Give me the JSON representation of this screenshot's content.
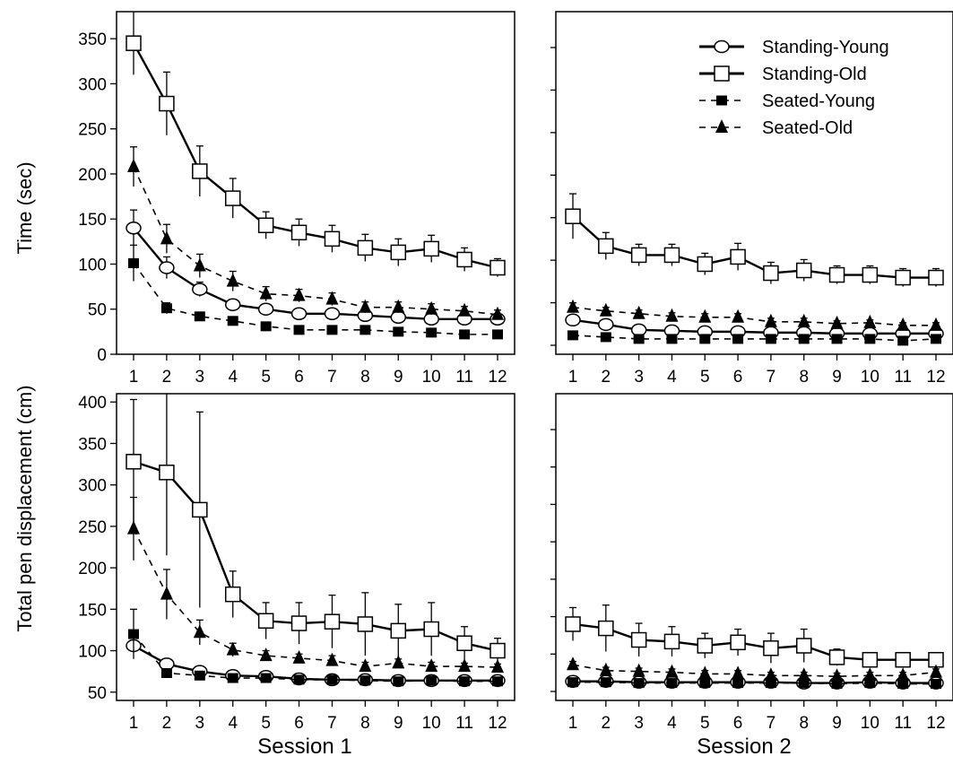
{
  "figure": {
    "session_labels": [
      "Session 1",
      "Session 2"
    ],
    "ylabels": [
      "Time (sec)",
      "Total pen displacement (cm)"
    ]
  },
  "legend": [
    {
      "name": "Standing-Young",
      "marker": "circle",
      "line": "solid",
      "weight": "bold"
    },
    {
      "name": "Standing-Old",
      "marker": "square",
      "line": "solid",
      "weight": "bold"
    },
    {
      "name": "Seated-Young",
      "marker": "filled-square",
      "line": "dashed",
      "weight": "normal"
    },
    {
      "name": "Seated-Old",
      "marker": "filled-triangle",
      "line": "dashed",
      "weight": "normal"
    }
  ],
  "chart_data": [
    {
      "type": "line",
      "panel": "time-session-1",
      "title": "",
      "xlabel": "Session 1",
      "ylabel": "Time (sec)",
      "x": [
        1,
        2,
        3,
        4,
        5,
        6,
        7,
        8,
        9,
        10,
        11,
        12
      ],
      "xticks": [
        1,
        2,
        3,
        4,
        5,
        6,
        7,
        8,
        9,
        10,
        11,
        12
      ],
      "ylim": [
        0,
        380
      ],
      "yticks": [
        0,
        50,
        100,
        150,
        200,
        250,
        300,
        350
      ],
      "grid": false,
      "legend": false,
      "series": [
        {
          "name": "Standing-Young",
          "values": [
            140,
            96,
            72,
            55,
            50,
            45,
            45,
            43,
            41,
            39,
            39,
            39
          ],
          "err": [
            20,
            12,
            8,
            6,
            5,
            4,
            4,
            4,
            4,
            3,
            3,
            3
          ]
        },
        {
          "name": "Standing-Old",
          "values": [
            345,
            278,
            203,
            173,
            143,
            135,
            128,
            118,
            113,
            117,
            105,
            96
          ],
          "err": [
            35,
            35,
            28,
            22,
            15,
            15,
            15,
            15,
            15,
            15,
            13,
            10
          ]
        },
        {
          "name": "Seated-Young",
          "values": [
            101,
            51,
            42,
            37,
            31,
            27,
            27,
            27,
            25,
            24,
            22,
            22
          ],
          "err": [
            20,
            6,
            4,
            3,
            3,
            2,
            2,
            2,
            2,
            2,
            2,
            2
          ]
        },
        {
          "name": "Seated-Old",
          "values": [
            208,
            128,
            98,
            81,
            67,
            65,
            61,
            52,
            52,
            50,
            48,
            44
          ],
          "err": [
            22,
            16,
            13,
            11,
            8,
            7,
            7,
            6,
            6,
            6,
            5,
            5
          ]
        }
      ]
    },
    {
      "type": "line",
      "panel": "time-session-2",
      "title": "",
      "xlabel": "Session 2",
      "ylabel": "",
      "x": [
        1,
        2,
        3,
        4,
        5,
        6,
        7,
        8,
        9,
        10,
        11,
        12
      ],
      "xticks": [
        1,
        2,
        3,
        4,
        5,
        6,
        7,
        8,
        9,
        10,
        11,
        12
      ],
      "ylim": [
        0,
        380
      ],
      "yticks": [],
      "grid": false,
      "legend": true,
      "legend_position": "top-right",
      "series": [
        {
          "name": "Standing-Young",
          "values": [
            38,
            33,
            27,
            26,
            25,
            25,
            24,
            24,
            23,
            23,
            23,
            23
          ],
          "err": [
            4,
            3,
            3,
            3,
            3,
            3,
            3,
            3,
            3,
            3,
            3,
            3
          ]
        },
        {
          "name": "Standing-Old",
          "values": [
            153,
            120,
            110,
            110,
            100,
            108,
            90,
            93,
            88,
            88,
            85,
            85
          ],
          "err": [
            25,
            15,
            12,
            12,
            12,
            15,
            12,
            12,
            10,
            10,
            10,
            10
          ]
        },
        {
          "name": "Seated-Young",
          "values": [
            21,
            19,
            17,
            17,
            17,
            17,
            17,
            17,
            17,
            17,
            15,
            17
          ],
          "err": [
            2,
            2,
            2,
            2,
            2,
            2,
            2,
            2,
            2,
            2,
            2,
            2
          ]
        },
        {
          "name": "Seated-Old",
          "values": [
            52,
            48,
            45,
            42,
            41,
            41,
            36,
            36,
            34,
            35,
            32,
            32
          ],
          "err": [
            5,
            4,
            4,
            4,
            4,
            4,
            4,
            4,
            3,
            3,
            3,
            3
          ]
        }
      ]
    },
    {
      "type": "line",
      "panel": "displacement-session-1",
      "title": "",
      "xlabel": "Session 1",
      "ylabel": "Total pen displacement (cm)",
      "x": [
        1,
        2,
        3,
        4,
        5,
        6,
        7,
        8,
        9,
        10,
        11,
        12
      ],
      "xticks": [
        1,
        2,
        3,
        4,
        5,
        6,
        7,
        8,
        9,
        10,
        11,
        12
      ],
      "ylim": [
        40,
        410
      ],
      "yticks": [
        50,
        100,
        150,
        200,
        250,
        300,
        350,
        400
      ],
      "grid": false,
      "legend": false,
      "series": [
        {
          "name": "Standing-Young",
          "values": [
            106,
            84,
            75,
            70,
            69,
            66,
            65,
            65,
            64,
            64,
            64,
            64
          ],
          "err": [
            6,
            4,
            3,
            2,
            2,
            2,
            2,
            2,
            2,
            2,
            2,
            2
          ]
        },
        {
          "name": "Standing-Old",
          "values": [
            328,
            315,
            270,
            168,
            136,
            133,
            135,
            132,
            124,
            126,
            109,
            100
          ],
          "err": [
            75,
            100,
            118,
            28,
            22,
            25,
            32,
            38,
            32,
            32,
            20,
            15
          ]
        },
        {
          "name": "Seated-Young",
          "values": [
            120,
            73,
            70,
            67,
            67,
            65,
            65,
            64,
            63,
            64,
            63,
            63
          ],
          "err": [
            30,
            4,
            3,
            2,
            2,
            2,
            2,
            2,
            2,
            2,
            2,
            2
          ]
        },
        {
          "name": "Seated-Old",
          "values": [
            247,
            168,
            122,
            101,
            94,
            91,
            88,
            81,
            85,
            81,
            81,
            80
          ],
          "err": [
            38,
            30,
            15,
            8,
            6,
            5,
            6,
            5,
            5,
            5,
            4,
            4
          ]
        }
      ]
    },
    {
      "type": "line",
      "panel": "displacement-session-2",
      "title": "",
      "xlabel": "Session 2",
      "ylabel": "",
      "x": [
        1,
        2,
        3,
        4,
        5,
        6,
        7,
        8,
        9,
        10,
        11,
        12
      ],
      "xticks": [
        1,
        2,
        3,
        4,
        5,
        6,
        7,
        8,
        9,
        10,
        11,
        12
      ],
      "ylim": [
        40,
        410
      ],
      "yticks": [],
      "grid": false,
      "legend": false,
      "series": [
        {
          "name": "Standing-Young",
          "values": [
            63,
            63,
            62,
            62,
            62,
            62,
            62,
            61,
            61,
            62,
            61,
            61
          ],
          "err": [
            3,
            3,
            3,
            3,
            3,
            3,
            3,
            3,
            3,
            3,
            3,
            3
          ]
        },
        {
          "name": "Standing-Old",
          "values": [
            132,
            127,
            113,
            111,
            106,
            110,
            103,
            106,
            92,
            89,
            89,
            89
          ],
          "err": [
            20,
            28,
            20,
            18,
            15,
            16,
            18,
            20,
            10,
            8,
            8,
            8
          ]
        },
        {
          "name": "Seated-Young",
          "values": [
            62,
            62,
            61,
            61,
            61,
            61,
            61,
            61,
            60,
            61,
            60,
            60
          ],
          "err": [
            2,
            2,
            2,
            2,
            2,
            2,
            2,
            2,
            2,
            2,
            2,
            2
          ]
        },
        {
          "name": "Seated-Old",
          "values": [
            83,
            76,
            75,
            74,
            72,
            72,
            70,
            70,
            69,
            70,
            70,
            74
          ],
          "err": [
            4,
            4,
            4,
            4,
            4,
            4,
            4,
            4,
            4,
            4,
            4,
            4
          ]
        }
      ]
    }
  ]
}
